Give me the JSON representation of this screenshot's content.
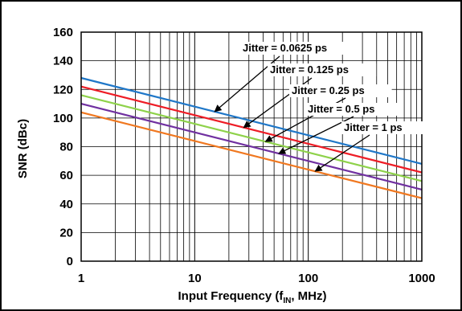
{
  "chart_data": {
    "type": "line",
    "xlabel_main": "Input Frequency (f",
    "xlabel_sub": "IN",
    "xlabel_tail": ", MHz)",
    "ylabel": "SNR (dBc)",
    "xscale": "log",
    "xlim": [
      1,
      1000
    ],
    "ylim": [
      0,
      160
    ],
    "grid": true,
    "x_ticks": [
      1,
      10,
      100,
      1000
    ],
    "x_tick_labels": [
      "1",
      "10",
      "100",
      "1000"
    ],
    "y_ticks": [
      0,
      20,
      40,
      60,
      80,
      100,
      120,
      140,
      160
    ],
    "y_tick_labels": [
      "0",
      "20",
      "40",
      "60",
      "80",
      "100",
      "120",
      "140",
      "160"
    ],
    "series": [
      {
        "name": "Jitter = 0.0625 ps",
        "color": "#1f77c8",
        "x": [
          1,
          1000
        ],
        "values": [
          128,
          68
        ]
      },
      {
        "name": "Jitter = 0.125 ps",
        "color": "#ee1c25",
        "x": [
          1,
          1000
        ],
        "values": [
          122,
          62
        ]
      },
      {
        "name": "Jitter = 0.25 ps",
        "color": "#8ed24a",
        "x": [
          1,
          1000
        ],
        "values": [
          116,
          56
        ]
      },
      {
        "name": "Jitter = 0.5 ps",
        "color": "#7030a0",
        "x": [
          1,
          1000
        ],
        "values": [
          110,
          50
        ]
      },
      {
        "name": "Jitter = 1 ps",
        "color": "#f07820",
        "x": [
          1,
          1000
        ],
        "values": [
          104,
          44
        ]
      }
    ],
    "annotations": [
      {
        "text": "Jitter = 0.0625 ps",
        "series": 0,
        "arrow_to_x": 15
      },
      {
        "text": "Jitter = 0.125 ps",
        "series": 1,
        "arrow_to_x": 27
      },
      {
        "text": "Jitter = 0.25 ps",
        "series": 2,
        "arrow_to_x": 42
      },
      {
        "text": "Jitter = 0.5 ps",
        "series": 3,
        "arrow_to_x": 55
      },
      {
        "text": "Jitter = 1 ps",
        "series": 4,
        "arrow_to_x": 115
      }
    ]
  }
}
